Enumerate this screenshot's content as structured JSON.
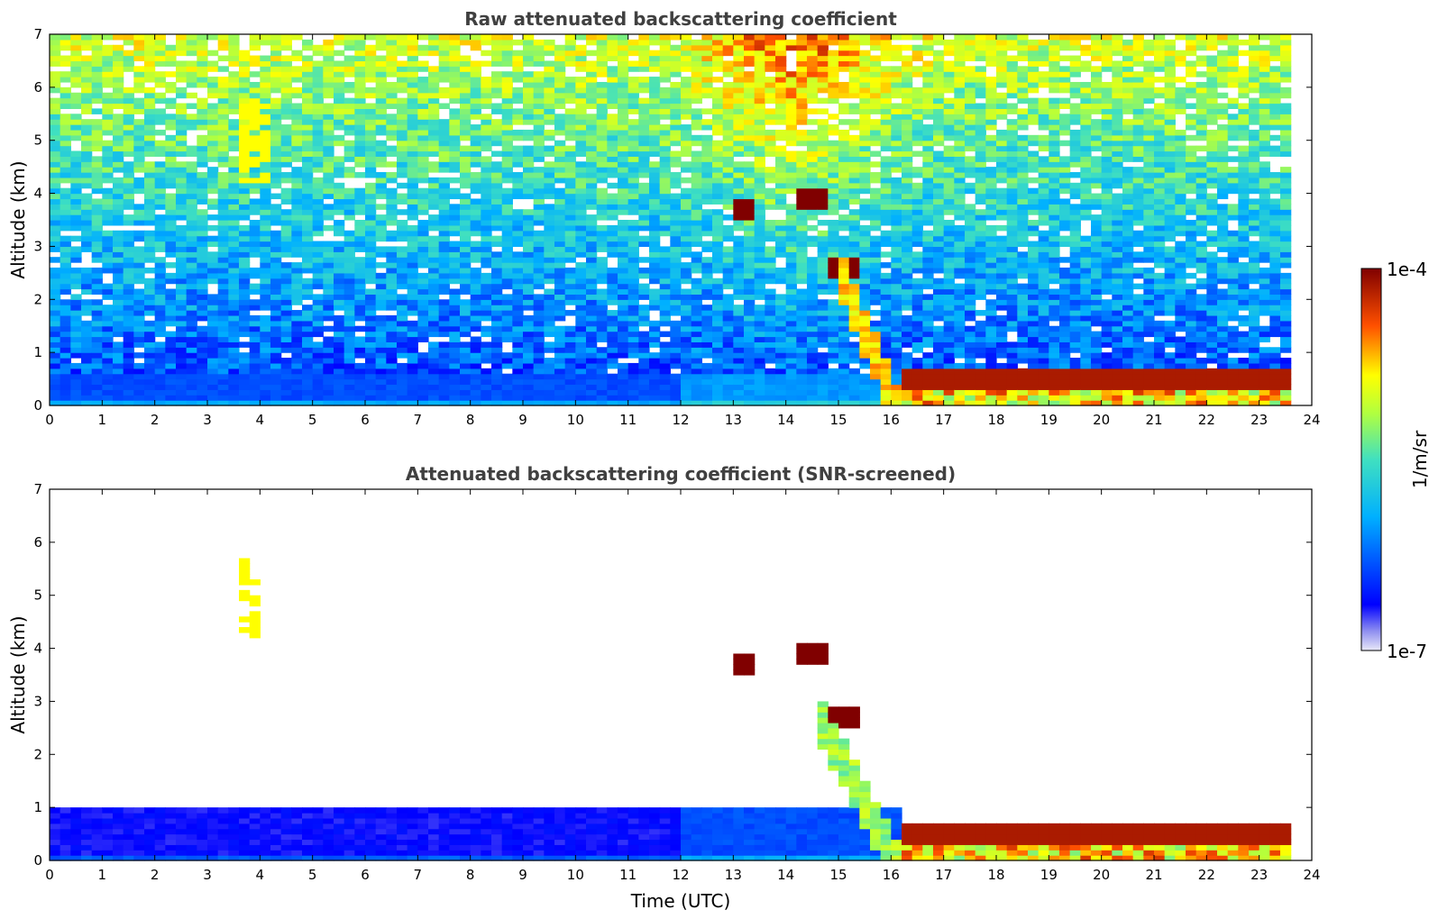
{
  "chart_data": [
    {
      "type": "heatmap",
      "title": "Raw attenuated backscattering coefficient",
      "xlabel": "",
      "ylabel": "Altitude (km)",
      "xlim": [
        0,
        24
      ],
      "ylim": [
        0,
        7
      ],
      "x_ticks": [
        "0",
        "1",
        "2",
        "3",
        "4",
        "5",
        "6",
        "7",
        "8",
        "9",
        "10",
        "11",
        "12",
        "13",
        "14",
        "15",
        "16",
        "17",
        "18",
        "19",
        "20",
        "21",
        "22",
        "23",
        "24"
      ],
      "y_ticks": [
        "0",
        "1",
        "2",
        "3",
        "4",
        "5",
        "6",
        "7"
      ],
      "data_end_time": 23.6,
      "grid": false,
      "features": [
        {
          "kind": "boundary_layer",
          "t_start": 0,
          "t_end": 16.2,
          "top_km": 0.6,
          "level": 0.22
        },
        {
          "kind": "elevated_cloud",
          "t_start": 3.7,
          "t_end": 4.2,
          "bottom_km": 4.2,
          "top_km": 5.8,
          "level": 0.72
        },
        {
          "kind": "cloud",
          "t_start": 14.3,
          "t_end": 14.9,
          "altitude_km": 3.9,
          "level": 1.0
        },
        {
          "kind": "cloud",
          "t_start": 13.0,
          "t_end": 13.4,
          "altitude_km": 3.7,
          "level": 1.0
        },
        {
          "kind": "cloud",
          "t_start": 14.8,
          "t_end": 15.4,
          "altitude_km": 2.6,
          "level": 1.0
        },
        {
          "kind": "descending_layer",
          "t_start": 15.0,
          "t_end": 16.2,
          "from_km": 3.0,
          "to_km": 0.2,
          "level": 0.75
        },
        {
          "kind": "low_cloud",
          "t_start": 16.2,
          "t_end": 23.6,
          "altitude_km": 0.5,
          "level": 0.95
        }
      ]
    },
    {
      "type": "heatmap",
      "title": "Attenuated backscattering coefficient (SNR-screened)",
      "xlabel": "Time (UTC)",
      "ylabel": "Altitude (km)",
      "xlim": [
        0,
        24
      ],
      "ylim": [
        0,
        7
      ],
      "x_ticks": [
        "0",
        "1",
        "2",
        "3",
        "4",
        "5",
        "6",
        "7",
        "8",
        "9",
        "10",
        "11",
        "12",
        "13",
        "14",
        "15",
        "16",
        "17",
        "18",
        "19",
        "20",
        "21",
        "22",
        "23",
        "24"
      ],
      "y_ticks": [
        "0",
        "1",
        "2",
        "3",
        "4",
        "5",
        "6",
        "7"
      ],
      "data_end_time": 23.6,
      "grid": false,
      "features": [
        {
          "kind": "boundary_layer",
          "t_start": 0,
          "t_end": 16.2,
          "top_km": 1.0,
          "level": 0.12
        },
        {
          "kind": "elevated_cloud",
          "t_start": 3.7,
          "t_end": 4.1,
          "bottom_km": 4.2,
          "top_km": 5.7,
          "level": 0.72
        },
        {
          "kind": "cloud",
          "t_start": 14.3,
          "t_end": 14.9,
          "altitude_km": 3.9,
          "level": 1.0
        },
        {
          "kind": "cloud",
          "t_start": 13.1,
          "t_end": 13.4,
          "altitude_km": 3.7,
          "level": 1.0
        },
        {
          "kind": "cloud",
          "t_start": 14.8,
          "t_end": 15.4,
          "altitude_km": 2.7,
          "level": 1.0
        },
        {
          "kind": "descending_layer",
          "t_start": 14.7,
          "t_end": 16.2,
          "from_km": 3.0,
          "to_km": 0.2,
          "level": 0.6
        },
        {
          "kind": "low_cloud",
          "t_start": 16.2,
          "t_end": 23.6,
          "altitude_km": 0.5,
          "level": 0.95
        }
      ]
    }
  ],
  "colorbar": {
    "label": "1/m/sr",
    "max_label": "1e-4",
    "min_label": "1e-7",
    "scale": "log",
    "colormap": "jet",
    "colors": [
      "#e8e8f8",
      "#0000ff",
      "#00c8ff",
      "#80ff80",
      "#ffff00",
      "#ff6000",
      "#800000"
    ]
  }
}
